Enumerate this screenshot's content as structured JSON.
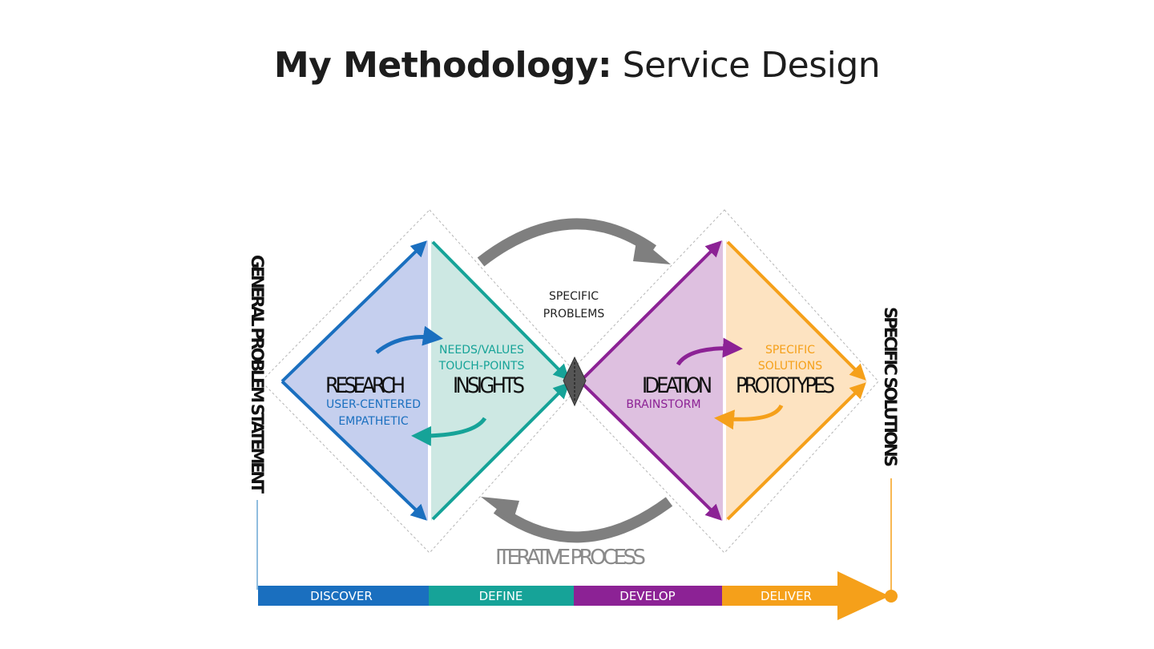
{
  "title": {
    "bold": "My Methodology:",
    "light": "Service Design"
  },
  "diagram": {
    "phases": {
      "research": {
        "label": "RESEARCH",
        "sub": [
          "USER-CENTERED",
          "EMPATHETIC"
        ]
      },
      "insights": {
        "label": "INSIGHTS",
        "sub": [
          "NEEDS/VALUES",
          "TOUCH-POINTS"
        ]
      },
      "ideation": {
        "label": "IDEATION",
        "sub": [
          "BRAINSTORM"
        ]
      },
      "prototypes": {
        "label": "PROTOTYPES",
        "sub": [
          "SPECIFIC",
          "SOLUTIONS"
        ]
      }
    },
    "center_label": [
      "SPECIFIC",
      "PROBLEMS"
    ],
    "left_vertical": "GENERAL PROBLEM STATEMENT",
    "right_vertical": "SPECIFIC SOLUTIONS",
    "iterative": "ITERATIVE PROCESS",
    "stages": [
      "DISCOVER",
      "DEFINE",
      "DEVELOP",
      "DELIVER"
    ]
  },
  "colors": {
    "blue": "#1a6fbf",
    "blue_fill": "#c5cfee",
    "teal": "#16a398",
    "teal_fill": "#cde8e3",
    "purple": "#8c2295",
    "purple_fill": "#dec0e0",
    "orange": "#f5a01a",
    "orange_fill": "#fde3c1",
    "gray": "#7f7f7f"
  }
}
